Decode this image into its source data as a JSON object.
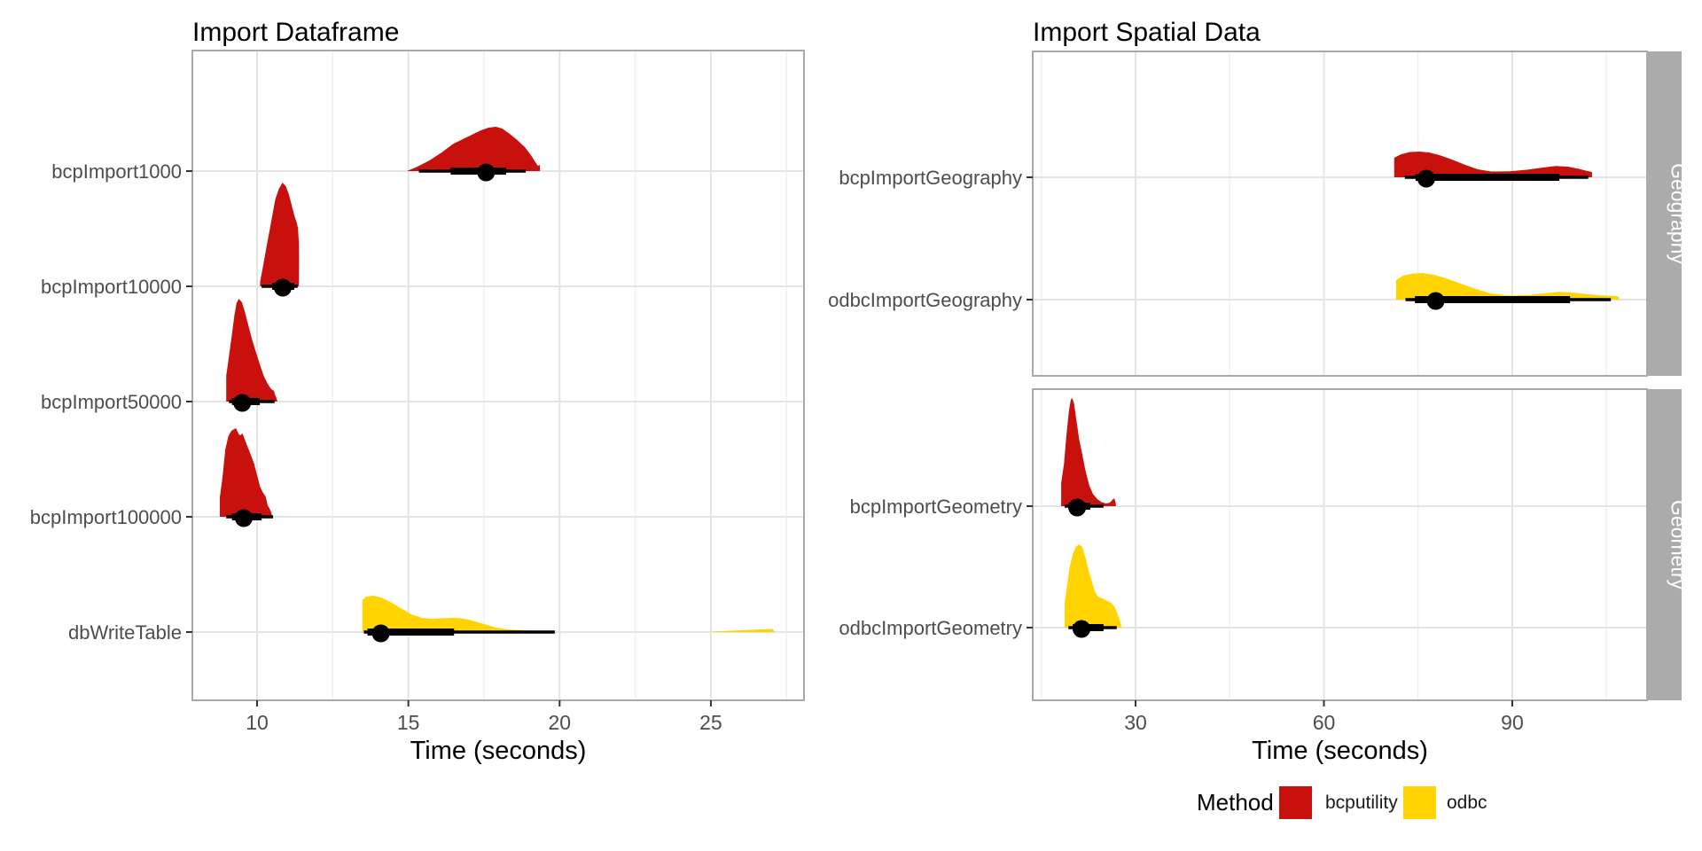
{
  "colors": {
    "bcputility": "#C8100D",
    "odbc": "#FFD400",
    "interval": "#000000",
    "grid_major": "#E4E4E4",
    "grid_minor": "#F0F0F0",
    "panel_border": "#A9A9A9",
    "panel_bg": "#FFFFFF",
    "strip_bg": "#ABABAB",
    "strip_text": "#FFFFFF",
    "tick_mark": "#333333",
    "tick_text": "#4D4D4D",
    "title_text": "#000000"
  },
  "legend": {
    "title": "Method",
    "items": [
      {
        "label": "bcputility",
        "color": "#C8100D"
      },
      {
        "label": "odbc",
        "color": "#FFD400"
      }
    ]
  },
  "chart_data": [
    {
      "type": "halfeye_violin",
      "title": "Import Dataframe",
      "xlabel": "Time (seconds)",
      "x_ticks": [
        10,
        15,
        20,
        25
      ],
      "x_minor_ticks": [
        12.5,
        17.5,
        22.5,
        27.5
      ],
      "x_domain": [
        7.86,
        28.08
      ],
      "grid": true,
      "legend_position": "none",
      "rows": [
        {
          "label": "bcpImport1000",
          "method": "bcputility",
          "median": 17.57,
          "interval_thick": [
            16.4,
            18.23
          ],
          "interval_thin": [
            15.35,
            18.88
          ],
          "violin": [
            [
              14.95,
              0
            ],
            [
              15.3,
              5
            ],
            [
              15.7,
              12
            ],
            [
              16.1,
              21
            ],
            [
              16.5,
              31
            ],
            [
              16.8,
              36
            ],
            [
              17.1,
              41
            ],
            [
              17.4,
              46
            ],
            [
              17.65,
              49
            ],
            [
              17.9,
              50
            ],
            [
              18.1,
              48
            ],
            [
              18.35,
              42
            ],
            [
              18.6,
              35
            ],
            [
              18.85,
              27
            ],
            [
              19.05,
              18
            ],
            [
              19.2,
              10
            ],
            [
              19.28,
              6
            ],
            [
              19.35,
              7
            ],
            [
              19.35,
              0
            ]
          ]
        },
        {
          "label": "bcpImport10000",
          "method": "bcputility",
          "median": 10.85,
          "interval_thick": [
            10.5,
            11.23
          ],
          "interval_thin": [
            10.15,
            11.34
          ],
          "violin": [
            [
              10.1,
              0
            ],
            [
              10.1,
              5
            ],
            [
              10.2,
              23
            ],
            [
              10.3,
              42
            ],
            [
              10.45,
              70
            ],
            [
              10.6,
              98
            ],
            [
              10.72,
              110
            ],
            [
              10.84,
              117
            ],
            [
              10.95,
              113
            ],
            [
              11.05,
              104
            ],
            [
              11.15,
              91
            ],
            [
              11.24,
              79
            ],
            [
              11.3,
              73
            ],
            [
              11.35,
              66
            ],
            [
              11.38,
              50
            ],
            [
              11.39,
              30
            ],
            [
              11.38,
              0
            ]
          ]
        },
        {
          "label": "bcpImport50000",
          "method": "bcputility",
          "median": 9.51,
          "interval_thick": [
            9.17,
            10.09
          ],
          "interval_thin": [
            9.07,
            10.58
          ],
          "violin": [
            [
              8.98,
              0
            ],
            [
              8.98,
              29
            ],
            [
              9.05,
              46
            ],
            [
              9.15,
              71
            ],
            [
              9.25,
              97
            ],
            [
              9.32,
              111
            ],
            [
              9.4,
              116
            ],
            [
              9.5,
              112
            ],
            [
              9.6,
              101
            ],
            [
              9.72,
              85
            ],
            [
              9.85,
              68
            ],
            [
              9.97,
              55
            ],
            [
              10.1,
              41
            ],
            [
              10.22,
              29
            ],
            [
              10.35,
              20
            ],
            [
              10.47,
              14
            ],
            [
              10.56,
              12
            ],
            [
              10.6,
              7
            ],
            [
              10.65,
              3
            ],
            [
              10.67,
              0
            ]
          ]
        },
        {
          "label": "bcpImport100000",
          "method": "bcputility",
          "median": 9.56,
          "interval_thick": [
            9.17,
            10.15
          ],
          "interval_thin": [
            8.98,
            10.53
          ],
          "violin": [
            [
              8.77,
              0
            ],
            [
              8.77,
              22
            ],
            [
              8.85,
              43
            ],
            [
              8.95,
              76
            ],
            [
              9.05,
              91
            ],
            [
              9.15,
              97
            ],
            [
              9.3,
              100
            ],
            [
              9.4,
              93
            ],
            [
              9.45,
              92
            ],
            [
              9.52,
              94
            ],
            [
              9.65,
              82
            ],
            [
              9.78,
              71
            ],
            [
              9.9,
              60
            ],
            [
              10.0,
              47
            ],
            [
              10.1,
              34
            ],
            [
              10.2,
              27
            ],
            [
              10.28,
              23
            ],
            [
              10.35,
              13
            ],
            [
              10.42,
              9
            ],
            [
              10.47,
              5
            ],
            [
              10.5,
              0
            ]
          ]
        },
        {
          "label": "dbWriteTable",
          "method": "odbc",
          "median": 14.09,
          "interval_thick": [
            13.65,
            16.51
          ],
          "interval_thin": [
            13.53,
            19.84
          ],
          "violin": [
            [
              13.48,
              0
            ],
            [
              13.48,
              36
            ],
            [
              13.6,
              40
            ],
            [
              13.85,
              41
            ],
            [
              14.1,
              39
            ],
            [
              14.4,
              34
            ],
            [
              14.75,
              27
            ],
            [
              15.1,
              20
            ],
            [
              15.45,
              16
            ],
            [
              15.75,
              15
            ],
            [
              16.1,
              15.5
            ],
            [
              16.5,
              16
            ],
            [
              16.72,
              15.5
            ],
            [
              17.0,
              14
            ],
            [
              17.3,
              11
            ],
            [
              17.6,
              8
            ],
            [
              17.9,
              5
            ],
            [
              18.3,
              3
            ],
            [
              18.8,
              2
            ],
            [
              19.35,
              0.5
            ],
            [
              19.35,
              0
            ]
          ],
          "outlier": [
            [
              24.95,
              0
            ],
            [
              25.3,
              1
            ],
            [
              26.0,
              2
            ],
            [
              26.6,
              3
            ],
            [
              27.05,
              3.5
            ],
            [
              27.1,
              0
            ]
          ]
        }
      ]
    },
    {
      "type": "halfeye_violin",
      "title": "Import Spatial Data",
      "xlabel": "Time (seconds)",
      "x_ticks": [
        30,
        60,
        90
      ],
      "x_minor_ticks": [
        15,
        45,
        75,
        105
      ],
      "x_domain": [
        13.6,
        111.5
      ],
      "grid": true,
      "legend_position": "bottom",
      "facets": [
        {
          "label": "Geography",
          "rows": [
            {
              "label": "bcpImportGeography",
              "method": "bcputility",
              "median": 76.3,
              "interval_thick": [
                74.6,
                97.5
              ],
              "interval_thin": [
                72.9,
                102.1
              ],
              "violin": [
                [
                  71.2,
                  0
                ],
                [
                  71.2,
                  22
                ],
                [
                  72.3,
                  26
                ],
                [
                  73.7,
                  28.5
                ],
                [
                  75.3,
                  29
                ],
                [
                  76.7,
                  28
                ],
                [
                  78.4,
                  25
                ],
                [
                  80.4,
                  20
                ],
                [
                  82.5,
                  14
                ],
                [
                  84.5,
                  9
                ],
                [
                  86.7,
                  6.5
                ],
                [
                  89.5,
                  6.8
                ],
                [
                  92.3,
                  8.5
                ],
                [
                  94.9,
                  11
                ],
                [
                  96.9,
                  12.7
                ],
                [
                  98.9,
                  12
                ],
                [
                  100.6,
                  9.5
                ],
                [
                  102.0,
                  7
                ],
                [
                  102.7,
                  6
                ],
                [
                  102.7,
                  0
                ]
              ]
            },
            {
              "label": "odbcImportGeography",
              "method": "odbc",
              "median": 77.8,
              "interval_thick": [
                74.5,
                99.2
              ],
              "interval_thin": [
                73.0,
                105.7
              ],
              "violin": [
                [
                  71.5,
                  0
                ],
                [
                  71.5,
                  22
                ],
                [
                  72.6,
                  27
                ],
                [
                  74.2,
                  29.5
                ],
                [
                  75.8,
                  30
                ],
                [
                  77.5,
                  28
                ],
                [
                  79.5,
                  24
                ],
                [
                  81.8,
                  18
                ],
                [
                  84.2,
                  12
                ],
                [
                  86.6,
                  7
                ],
                [
                  89.4,
                  4.5
                ],
                [
                  92.2,
                  5
                ],
                [
                  95.0,
                  7
                ],
                [
                  97.4,
                  8.7
                ],
                [
                  99.6,
                  8
                ],
                [
                  101.5,
                  6.5
                ],
                [
                  103.6,
                  5
                ],
                [
                  105.4,
                  4.4
                ],
                [
                  106.6,
                  4
                ],
                [
                  107.0,
                  3
                ],
                [
                  107.0,
                  0
                ]
              ]
            }
          ]
        },
        {
          "label": "Geometry",
          "rows": [
            {
              "label": "bcpImportGeometry",
              "method": "bcputility",
              "median": 20.7,
              "interval_thick": [
                19.3,
                22.8
              ],
              "interval_thin": [
                18.7,
                24.9
              ],
              "violin": [
                [
                  18.15,
                  0
                ],
                [
                  18.15,
                  26
                ],
                [
                  18.6,
                  48
                ],
                [
                  19.0,
                  81
                ],
                [
                  19.4,
                  108
                ],
                [
                  19.7,
                  120
                ],
                [
                  19.9,
                  122
                ],
                [
                  20.2,
                  116
                ],
                [
                  20.6,
                  96
                ],
                [
                  21.0,
                  76
                ],
                [
                  21.5,
                  59
                ],
                [
                  22.0,
                  41
                ],
                [
                  22.6,
                  24
                ],
                [
                  23.2,
                  14
                ],
                [
                  23.9,
                  8
                ],
                [
                  24.6,
                  4.5
                ],
                [
                  25.3,
                  3
                ],
                [
                  25.9,
                  4
                ],
                [
                  26.3,
                  7
                ],
                [
                  26.6,
                  9
                ],
                [
                  26.8,
                  5
                ],
                [
                  26.9,
                  0
                ]
              ]
            },
            {
              "label": "odbcImportGeometry",
              "method": "odbc",
              "median": 21.4,
              "interval_thick": [
                20.0,
                24.9
              ],
              "interval_thin": [
                19.3,
                27.0
              ],
              "violin": [
                [
                  18.7,
                  0
                ],
                [
                  18.7,
                  28
                ],
                [
                  19.0,
                  43
                ],
                [
                  19.5,
                  68
                ],
                [
                  20.0,
                  83
                ],
                [
                  20.5,
                  91
                ],
                [
                  21.0,
                  94
                ],
                [
                  21.5,
                  91
                ],
                [
                  22.0,
                  80
                ],
                [
                  22.5,
                  65
                ],
                [
                  23.0,
                  53
                ],
                [
                  23.5,
                  41
                ],
                [
                  24.0,
                  35
                ],
                [
                  24.7,
                  33
                ],
                [
                  25.5,
                  30
                ],
                [
                  26.1,
                  28
                ],
                [
                  26.6,
                  24
                ],
                [
                  27.1,
                  16
                ],
                [
                  27.5,
                  8
                ],
                [
                  27.7,
                  3
                ],
                [
                  27.7,
                  0
                ]
              ]
            }
          ]
        }
      ]
    }
  ]
}
